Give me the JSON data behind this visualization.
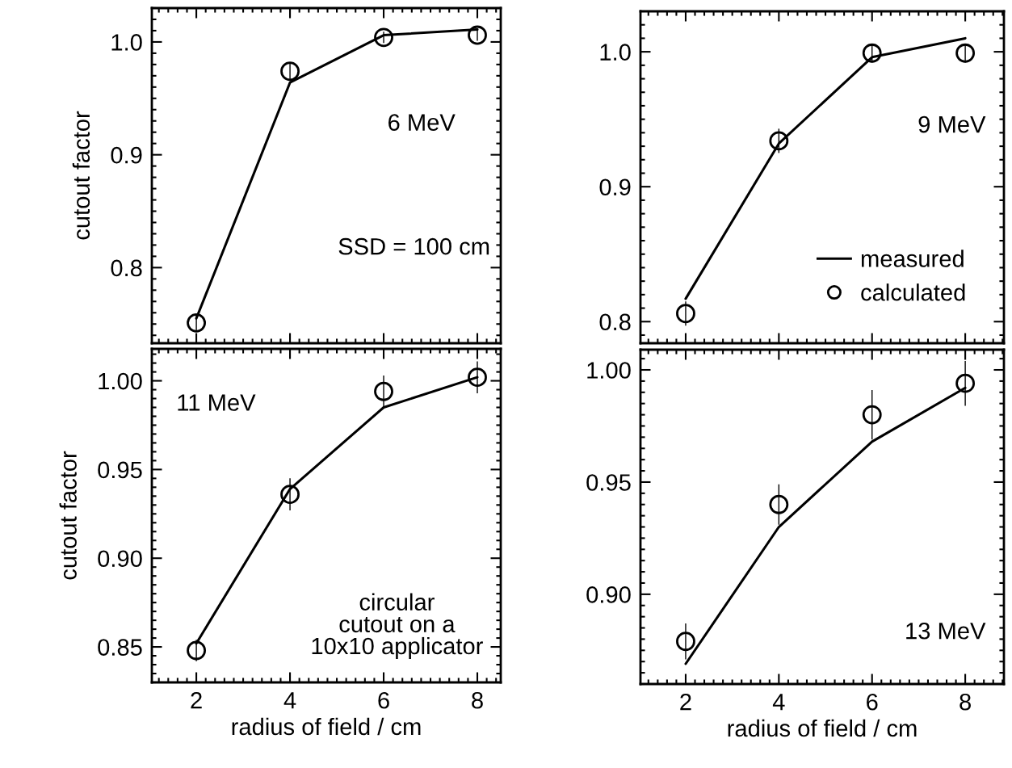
{
  "chart_data": [
    {
      "type": "line",
      "annotations": [
        "6 MeV",
        "SSD = 100 cm"
      ],
      "ylabel": "cutout factor",
      "x": [
        2,
        4,
        6,
        8
      ],
      "xlim": [
        1.05,
        8.5
      ],
      "xticks": [
        2,
        4,
        6,
        8
      ],
      "ylim": [
        0.733,
        1.03
      ],
      "yticks": [
        {
          "value": 0.8,
          "label": "0.8"
        },
        {
          "value": 0.9,
          "label": "0.9"
        },
        {
          "value": 1.0,
          "label": "1.0"
        }
      ],
      "tick_labels": "y",
      "series": [
        {
          "color": "#000000",
          "values": [
            0.755,
            0.964,
            1.006,
            1.011
          ]
        },
        {
          "type": "scatter",
          "color": "#000000",
          "marker": "circle",
          "values": [
            0.751,
            0.974,
            1.004,
            1.006
          ],
          "errors": [
            0.007,
            0.007,
            0.005,
            0.005
          ]
        }
      ]
    },
    {
      "type": "line",
      "annotations": [
        "9 MeV"
      ],
      "x": [
        2,
        4,
        6,
        8
      ],
      "xlim": [
        1.03,
        8.83
      ],
      "xticks": [
        2,
        4,
        6,
        8
      ],
      "ylim": [
        0.784,
        1.03
      ],
      "yticks": [
        {
          "value": 0.8,
          "label": "0.8"
        },
        {
          "value": 0.9,
          "label": "0.9"
        },
        {
          "value": 1.0,
          "label": "1.0"
        }
      ],
      "tick_labels": "y",
      "legend": "lower right",
      "series": [
        {
          "name": "measured",
          "color": "#000000",
          "values": [
            0.817,
            0.932,
            0.996,
            1.01
          ]
        },
        {
          "type": "scatter",
          "name": "calculated",
          "color": "#000000",
          "marker": "circle",
          "values": [
            0.806,
            0.934,
            0.999,
            0.999
          ],
          "errors": [
            0.009,
            0.009,
            0.007,
            0.007
          ]
        }
      ]
    },
    {
      "type": "line",
      "annotations": [
        "11 MeV",
        "circular\ncutout on a\n10x10 applicator"
      ],
      "ylabel": "cutout factor",
      "xlabel": "radius of field / cm",
      "x": [
        2,
        4,
        6,
        8
      ],
      "xlim": [
        1.05,
        8.5
      ],
      "xticks": [
        2,
        4,
        6,
        8
      ],
      "ylim": [
        0.83,
        1.018
      ],
      "yticks": [
        {
          "value": 0.85,
          "label": "0.85"
        },
        {
          "value": 0.9,
          "label": "0.90"
        },
        {
          "value": 0.95,
          "label": "0.95"
        },
        {
          "value": 1.0,
          "label": "1.00"
        }
      ],
      "series": [
        {
          "color": "#000000",
          "values": [
            0.852,
            0.939,
            0.985,
            1.002
          ]
        },
        {
          "type": "scatter",
          "color": "#000000",
          "marker": "circle",
          "values": [
            0.848,
            0.936,
            0.994,
            1.002
          ],
          "errors": [
            0.006,
            0.009,
            0.009,
            0.009
          ]
        }
      ]
    },
    {
      "type": "line",
      "annotations": [
        "13 MeV"
      ],
      "xlabel": "radius of field / cm",
      "x": [
        2,
        4,
        6,
        8
      ],
      "xlim": [
        1.03,
        8.83
      ],
      "xticks": [
        2,
        4,
        6,
        8
      ],
      "ylim": [
        0.86,
        1.009
      ],
      "yticks": [
        {
          "value": 0.9,
          "label": "0.90"
        },
        {
          "value": 0.95,
          "label": "0.95"
        },
        {
          "value": 1.0,
          "label": "1.00"
        }
      ],
      "series": [
        {
          "color": "#000000",
          "values": [
            0.869,
            0.93,
            0.968,
            0.992
          ]
        },
        {
          "type": "scatter",
          "color": "#000000",
          "marker": "circle",
          "values": [
            0.879,
            0.94,
            0.98,
            0.994
          ],
          "errors": [
            0.008,
            0.009,
            0.011,
            0.01
          ]
        }
      ]
    }
  ]
}
